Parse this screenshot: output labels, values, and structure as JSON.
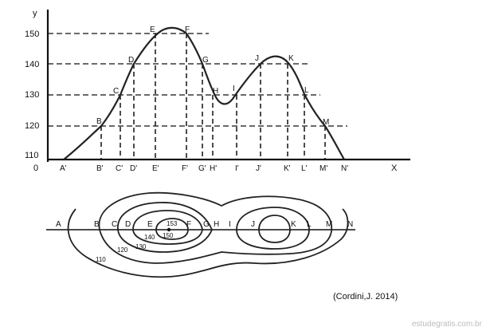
{
  "profile": {
    "y_axis_label": "y",
    "x_axis_label": "X",
    "origin_label": "0",
    "y_ticks": [
      "150",
      "140",
      "130",
      "120",
      "110"
    ],
    "points": {
      "A": "A'",
      "B": "B",
      "C": "C",
      "D": "D",
      "E": "E",
      "F": "F",
      "G": "G",
      "H": "H",
      "I": "I",
      "J": "J",
      "K": "K",
      "L": "L",
      "M": "M"
    },
    "x_ticks": [
      "A'",
      "B'",
      "C'",
      "D'",
      "E'",
      "F'",
      "G'",
      "H'",
      "I'",
      "J'",
      "K'",
      "L'",
      "M'",
      "N'"
    ]
  },
  "map": {
    "line_labels": [
      "A",
      "B",
      "C",
      "D",
      "E",
      "F",
      "G",
      "H",
      "I",
      "J",
      "K",
      "L",
      "M",
      "N"
    ],
    "contours": {
      "c153": "153",
      "c150": "150",
      "c140": "140",
      "c130": "130",
      "c120": "120",
      "c110": "110"
    }
  },
  "credit": "(Cordini,J. 2014)",
  "watermark": "estudegratis.com.br"
}
